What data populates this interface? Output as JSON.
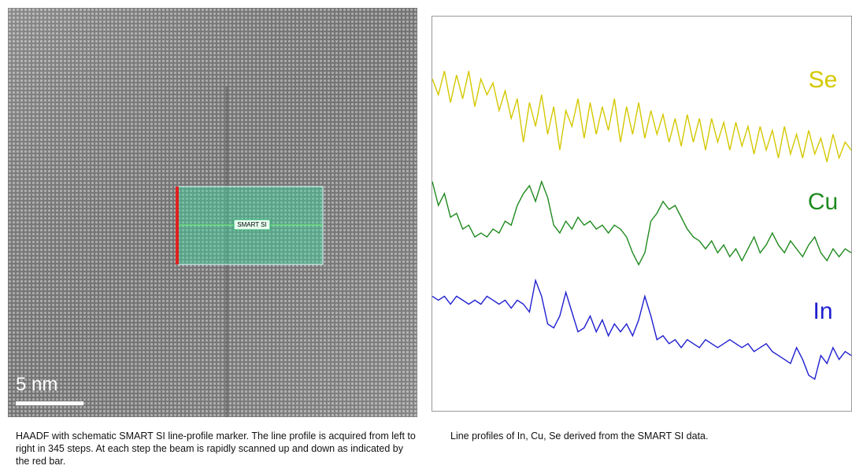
{
  "image_panel": {
    "scale_bar": "5 nm",
    "marker_label": "SMART SI",
    "caption": "HAADF with schematic SMART SI line-profile marker. The line profile is acquired from left to right in 345 steps. At each step the beam is rapidly scanned up and down as indicated by the red bar."
  },
  "chart_data": {
    "type": "line",
    "caption": "Line profiles of In, Cu, Se derived from the SMART SI data.",
    "ylim": [
      0,
      100
    ],
    "series": [
      {
        "name": "Se",
        "color": "#d4c800",
        "values": [
          84,
          80,
          86,
          78,
          85,
          79,
          86,
          77,
          84,
          80,
          83,
          76,
          81,
          74,
          79,
          68,
          78,
          72,
          80,
          70,
          77,
          66,
          76,
          72,
          79,
          69,
          78,
          70,
          77,
          71,
          79,
          68,
          77,
          70,
          78,
          69,
          76,
          70,
          75,
          68,
          74,
          67,
          75,
          68,
          74,
          66,
          74,
          68,
          73,
          66,
          73,
          67,
          72,
          65,
          72,
          66,
          71,
          64,
          72,
          65,
          70,
          64,
          71,
          65,
          69,
          63,
          70,
          64,
          68,
          66
        ]
      },
      {
        "name": "Cu",
        "color": "#1f8a1f",
        "values": [
          58,
          52,
          55,
          49,
          50,
          46,
          47,
          44,
          45,
          44,
          46,
          45,
          48,
          47,
          52,
          55,
          57,
          53,
          58,
          54,
          47,
          45,
          48,
          46,
          49,
          47,
          48,
          46,
          47,
          45,
          47,
          46,
          44,
          40,
          37,
          40,
          48,
          50,
          53,
          51,
          52,
          49,
          46,
          44,
          43,
          41,
          43,
          40,
          42,
          39,
          41,
          38,
          41,
          44,
          40,
          42,
          45,
          42,
          40,
          43,
          41,
          39,
          42,
          44,
          40,
          38,
          41,
          39,
          41,
          40
        ]
      },
      {
        "name": "In",
        "color": "#1f1fd0",
        "values": [
          29,
          28,
          29,
          27,
          29,
          28,
          27,
          28,
          27,
          29,
          28,
          27,
          28,
          26,
          28,
          27,
          25,
          33,
          29,
          22,
          21,
          24,
          30,
          25,
          20,
          21,
          24,
          20,
          23,
          19,
          22,
          20,
          22,
          19,
          23,
          29,
          24,
          18,
          19,
          17,
          18,
          16,
          18,
          17,
          16,
          18,
          17,
          16,
          17,
          18,
          17,
          16,
          17,
          15,
          16,
          17,
          15,
          14,
          13,
          12,
          16,
          13,
          9,
          8,
          14,
          12,
          16,
          13,
          15,
          14
        ]
      }
    ]
  }
}
